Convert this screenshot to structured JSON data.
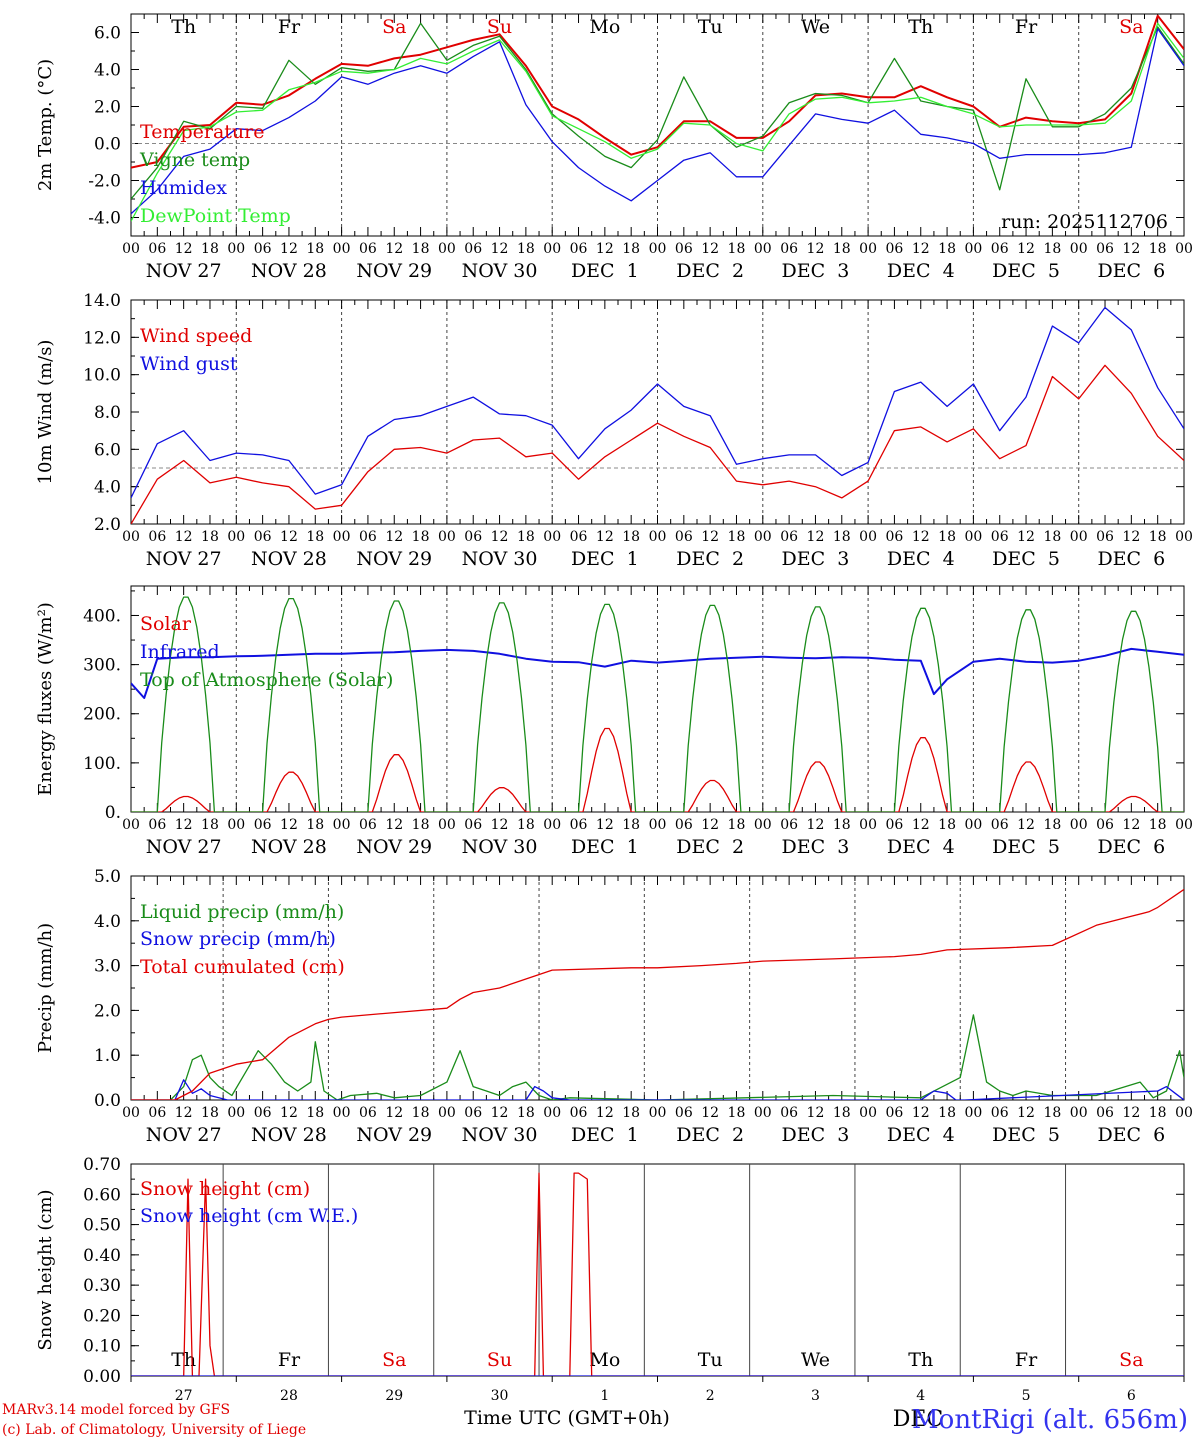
{
  "colors": {
    "red": "#e00000",
    "green": "#1a8c1a",
    "blue": "#1010e0",
    "lightgreen": "#33ee33",
    "grey": "#888888"
  },
  "hours_axis": [
    "00",
    "06",
    "12",
    "18"
  ],
  "dates": [
    "NOV 27",
    "NOV 28",
    "NOV 29",
    "NOV 30",
    "DEC  1",
    "DEC  2",
    "DEC  3",
    "DEC  4",
    "DEC  5",
    "DEC  6"
  ],
  "weekdays": [
    {
      "label": "Th",
      "weekend": false
    },
    {
      "label": "Fr",
      "weekend": false
    },
    {
      "label": "Sa",
      "weekend": true
    },
    {
      "label": "Su",
      "weekend": true
    },
    {
      "label": "Mo",
      "weekend": false
    },
    {
      "label": "Tu",
      "weekend": false
    },
    {
      "label": "We",
      "weekend": false
    },
    {
      "label": "Th",
      "weekend": false
    },
    {
      "label": "Fr",
      "weekend": false
    },
    {
      "label": "Sa",
      "weekend": true
    }
  ],
  "day_numbers": [
    "27",
    "28",
    "29",
    "30",
    "1",
    "2",
    "3",
    "4",
    "5",
    "6"
  ],
  "run_label": "run: 2025112706",
  "footer": {
    "model": "MARv3.14 model forced by GFS",
    "copyright": "(c) Lab. of Climatology, University of Liege",
    "xlabel": "Time UTC (GMT+0h)",
    "station": "MontRigi (alt. 656m)",
    "month": "DEC"
  },
  "chart_data": [
    {
      "type": "line",
      "id": "temp",
      "ylabel": "2m Temp. (°C)",
      "ylim": [
        -5,
        7
      ],
      "yticks": [
        6,
        4,
        2,
        0,
        -2,
        -4
      ],
      "tick_labels": [
        "6.0",
        "4.0",
        "2.0",
        "0.0",
        "-2.0",
        "-4.0"
      ],
      "ref_line": 0,
      "x_unit": "hours since NOV 27 00 UTC",
      "x_range": [
        0,
        240
      ],
      "series": [
        {
          "name": "Temperature",
          "color": "red",
          "x": [
            0,
            6,
            12,
            18,
            24,
            30,
            36,
            42,
            48,
            54,
            60,
            66,
            72,
            78,
            84,
            90,
            96,
            102,
            108,
            114,
            120,
            126,
            132,
            138,
            144,
            150,
            156,
            162,
            168,
            174,
            180,
            186,
            192,
            198,
            204,
            210,
            216,
            222,
            228,
            234,
            240
          ],
          "y": [
            -1.3,
            -1.0,
            0.9,
            1.0,
            2.2,
            2.1,
            2.6,
            3.5,
            4.3,
            4.2,
            4.6,
            4.8,
            5.2,
            5.6,
            5.9,
            4.2,
            2.0,
            1.3,
            0.3,
            -0.6,
            -0.2,
            1.2,
            1.2,
            0.3,
            0.3,
            1.2,
            2.6,
            2.7,
            2.5,
            2.5,
            3.1,
            2.5,
            2.0,
            0.9,
            1.4,
            1.2,
            1.1,
            1.3,
            2.7,
            6.9,
            5.1
          ]
        },
        {
          "name": "Vigne temp",
          "color": "green",
          "x": [
            0,
            6,
            12,
            18,
            24,
            30,
            36,
            42,
            48,
            54,
            60,
            66,
            72,
            78,
            84,
            90,
            96,
            102,
            108,
            114,
            120,
            126,
            132,
            138,
            144,
            150,
            156,
            162,
            168,
            174,
            180,
            186,
            192,
            198,
            204,
            210,
            216,
            222,
            228,
            234,
            240
          ],
          "y": [
            -3.0,
            -1.3,
            1.2,
            0.8,
            2.0,
            1.9,
            4.5,
            3.2,
            4.1,
            3.9,
            4.0,
            6.5,
            4.5,
            5.3,
            5.8,
            4.0,
            1.6,
            0.4,
            -0.7,
            -1.3,
            0.2,
            3.6,
            1.0,
            -0.2,
            0.4,
            2.2,
            2.7,
            2.6,
            2.2,
            4.6,
            2.3,
            2.0,
            1.8,
            -2.5,
            3.5,
            0.9,
            0.9,
            1.6,
            3.0,
            6.3,
            4.3
          ]
        },
        {
          "name": "Humidex",
          "color": "blue",
          "x": [
            0,
            6,
            12,
            18,
            24,
            30,
            36,
            42,
            48,
            54,
            60,
            66,
            72,
            78,
            84,
            90,
            96,
            102,
            108,
            114,
            120,
            126,
            132,
            138,
            144,
            150,
            156,
            162,
            168,
            174,
            180,
            186,
            192,
            198,
            204,
            210,
            216,
            222,
            228,
            234,
            240
          ],
          "y": [
            -3.8,
            -2.5,
            -0.7,
            -0.3,
            0.8,
            0.7,
            1.4,
            2.3,
            3.6,
            3.2,
            3.8,
            4.2,
            3.8,
            4.7,
            5.5,
            2.1,
            0.1,
            -1.3,
            -2.3,
            -3.1,
            -2.0,
            -0.9,
            -0.5,
            -1.8,
            -1.8,
            -0.1,
            1.6,
            1.3,
            1.1,
            1.8,
            0.5,
            0.3,
            0.0,
            -0.8,
            -0.6,
            -0.6,
            -0.6,
            -0.5,
            -0.2,
            6.2,
            4.2
          ]
        },
        {
          "name": "DewPoint Temp",
          "color": "lightgreen",
          "x": [
            0,
            6,
            12,
            18,
            24,
            30,
            36,
            42,
            48,
            54,
            60,
            66,
            72,
            78,
            84,
            90,
            96,
            102,
            108,
            114,
            120,
            126,
            132,
            138,
            144,
            150,
            156,
            162,
            168,
            174,
            180,
            186,
            192,
            198,
            204,
            210,
            216,
            222,
            228,
            234,
            240
          ],
          "y": [
            -4.2,
            -1.6,
            0.7,
            0.9,
            1.7,
            1.8,
            2.9,
            3.3,
            3.9,
            3.8,
            4.0,
            4.6,
            4.3,
            5.0,
            5.6,
            3.9,
            1.5,
            0.8,
            0.1,
            -0.8,
            -0.3,
            1.1,
            1.0,
            0.0,
            -0.4,
            1.6,
            2.4,
            2.5,
            2.2,
            2.3,
            2.5,
            2.0,
            1.6,
            0.9,
            1.0,
            1.0,
            1.0,
            1.1,
            2.3,
            6.5,
            4.6
          ]
        }
      ]
    },
    {
      "type": "line",
      "id": "wind",
      "ylabel": "10m Wind (m/s)",
      "ylim": [
        2,
        14
      ],
      "yticks": [
        14,
        12,
        10,
        8,
        6,
        4,
        2
      ],
      "tick_labels": [
        "14.0",
        "12.0",
        "10.0",
        "8.0",
        "6.0",
        "4.0",
        "2.0"
      ],
      "ref_line": 5,
      "x_unit": "hours since NOV 27 00 UTC",
      "x_range": [
        0,
        240
      ],
      "series": [
        {
          "name": "Wind speed",
          "color": "red",
          "x": [
            0,
            6,
            12,
            18,
            24,
            30,
            36,
            42,
            48,
            54,
            60,
            66,
            72,
            78,
            84,
            90,
            96,
            102,
            108,
            114,
            120,
            126,
            132,
            138,
            144,
            150,
            156,
            162,
            168,
            174,
            180,
            186,
            192,
            198,
            204,
            210,
            216,
            222,
            228,
            234,
            240
          ],
          "y": [
            2.0,
            4.4,
            5.4,
            4.2,
            4.5,
            4.2,
            4.0,
            2.8,
            3.0,
            4.8,
            6.0,
            6.1,
            5.8,
            6.5,
            6.6,
            5.6,
            5.8,
            4.4,
            5.6,
            6.5,
            7.4,
            6.7,
            6.1,
            4.3,
            4.1,
            4.3,
            4.0,
            3.4,
            4.3,
            7.0,
            7.2,
            6.4,
            7.1,
            5.5,
            6.2,
            9.9,
            8.7,
            10.5,
            9.0,
            6.7,
            5.4
          ]
        },
        {
          "name": "Wind gust",
          "color": "blue",
          "x": [
            0,
            6,
            12,
            18,
            24,
            30,
            36,
            42,
            48,
            54,
            60,
            66,
            72,
            78,
            84,
            90,
            96,
            102,
            108,
            114,
            120,
            126,
            132,
            138,
            144,
            150,
            156,
            162,
            168,
            174,
            180,
            186,
            192,
            198,
            204,
            210,
            216,
            222,
            228,
            234,
            240
          ],
          "y": [
            3.4,
            6.3,
            7.0,
            5.4,
            5.8,
            5.7,
            5.4,
            3.6,
            4.1,
            6.7,
            7.6,
            7.8,
            8.3,
            8.8,
            7.9,
            7.8,
            7.3,
            5.5,
            7.1,
            8.1,
            9.5,
            8.3,
            7.8,
            5.2,
            5.5,
            5.7,
            5.7,
            4.6,
            5.3,
            9.1,
            9.6,
            8.3,
            9.5,
            7.0,
            8.8,
            12.6,
            11.7,
            13.6,
            12.4,
            9.3,
            7.1
          ]
        }
      ]
    },
    {
      "type": "line",
      "id": "energy",
      "ylabel": "Energy fluxes (W/m²)",
      "ylim": [
        0,
        460
      ],
      "yticks": [
        400,
        300,
        200,
        100,
        0
      ],
      "tick_labels": [
        "400.",
        "300.",
        "200.",
        "100.",
        "0."
      ],
      "x_unit": "hours since NOV 27 00 UTC",
      "x_range": [
        0,
        240
      ],
      "daily_solar_peaks": [
        32,
        82,
        118,
        50,
        172,
        65,
        103,
        153,
        103,
        32
      ],
      "daily_toa_peaks": [
        440,
        437,
        432,
        428,
        425,
        423,
        420,
        417,
        414,
        411
      ],
      "series": [
        {
          "name": "Solar",
          "color": "red"
        },
        {
          "name": "Infrared",
          "color": "blue",
          "x": [
            0,
            3,
            6,
            12,
            18,
            24,
            30,
            36,
            42,
            48,
            54,
            60,
            66,
            72,
            78,
            84,
            90,
            96,
            102,
            108,
            114,
            120,
            126,
            132,
            138,
            144,
            150,
            156,
            162,
            168,
            174,
            180,
            183,
            186,
            192,
            198,
            204,
            210,
            216,
            222,
            228,
            234,
            240
          ],
          "y": [
            262,
            232,
            312,
            315,
            315,
            317,
            318,
            320,
            322,
            322,
            324,
            325,
            328,
            330,
            328,
            322,
            312,
            306,
            305,
            296,
            308,
            304,
            308,
            312,
            314,
            316,
            314,
            313,
            315,
            314,
            310,
            308,
            240,
            270,
            306,
            312,
            306,
            304,
            308,
            318,
            332,
            326,
            320
          ]
        },
        {
          "name": "Top of Atmosphere (Solar)",
          "color": "green"
        }
      ]
    },
    {
      "type": "line",
      "id": "precip",
      "ylabel": "Precip (mm/h)",
      "ylim": [
        0,
        5
      ],
      "yticks": [
        5,
        4,
        3,
        2,
        1,
        0
      ],
      "tick_labels": [
        "5.0",
        "4.0",
        "3.0",
        "2.0",
        "1.0",
        "0.0"
      ],
      "x_unit": "hours since NOV 27 00 UTC",
      "x_range": [
        0,
        240
      ],
      "series": [
        {
          "name": "Liquid precip (mm/h)",
          "color": "green",
          "x": [
            0,
            9,
            12,
            14,
            16,
            18,
            20,
            23,
            26,
            29,
            32,
            35,
            38,
            41,
            42,
            44,
            47,
            50,
            56,
            60,
            66,
            72,
            75,
            78,
            81,
            84,
            87,
            90,
            93,
            96,
            100,
            120,
            140,
            160,
            180,
            189,
            192,
            195,
            198,
            201,
            204,
            210,
            220,
            230,
            233,
            236,
            239,
            240
          ],
          "y": [
            0,
            0,
            0.3,
            0.9,
            1.0,
            0.5,
            0.3,
            0.1,
            0.6,
            1.1,
            0.8,
            0.4,
            0.2,
            0.4,
            1.3,
            0.2,
            0,
            0.1,
            0.15,
            0.05,
            0.1,
            0.4,
            1.1,
            0.3,
            0.2,
            0.1,
            0.3,
            0.4,
            0.1,
            0,
            0.05,
            0,
            0.05,
            0.1,
            0.05,
            0.5,
            1.9,
            0.4,
            0.2,
            0.1,
            0.2,
            0.1,
            0.1,
            0.4,
            0.05,
            0.2,
            1.1,
            0.5
          ]
        },
        {
          "name": "Snow precip (mm/h)",
          "color": "blue",
          "x": [
            0,
            10,
            12,
            14,
            16,
            18,
            20,
            22,
            24,
            90,
            92,
            94,
            96,
            100,
            180,
            183,
            186,
            188,
            190,
            234,
            236,
            238,
            240
          ],
          "y": [
            0,
            0,
            0.45,
            0.15,
            0.25,
            0.1,
            0.05,
            0,
            0,
            0,
            0.3,
            0.2,
            0.05,
            0,
            0,
            0.2,
            0.15,
            0,
            0,
            0.2,
            0.3,
            0.15,
            0
          ]
        },
        {
          "name": "Total cumulated (cm)",
          "color": "red",
          "x": [
            0,
            10,
            14,
            18,
            24,
            30,
            36,
            42,
            45,
            48,
            60,
            72,
            75,
            78,
            84,
            90,
            96,
            114,
            120,
            130,
            138,
            144,
            160,
            174,
            180,
            186,
            200,
            210,
            220,
            228,
            232,
            234,
            240
          ],
          "y": [
            0,
            0,
            0.2,
            0.6,
            0.8,
            0.9,
            1.4,
            1.7,
            1.8,
            1.85,
            1.95,
            2.05,
            2.25,
            2.4,
            2.5,
            2.7,
            2.9,
            2.95,
            2.95,
            3.0,
            3.05,
            3.1,
            3.15,
            3.2,
            3.25,
            3.35,
            3.4,
            3.45,
            3.9,
            4.1,
            4.2,
            4.3,
            4.7
          ]
        }
      ]
    },
    {
      "type": "line",
      "id": "snow",
      "ylabel": "Snow height (cm)",
      "ylim": [
        0,
        0.7
      ],
      "yticks": [
        0.7,
        0.6,
        0.5,
        0.4,
        0.3,
        0.2,
        0.1,
        0
      ],
      "tick_labels": [
        "0.70",
        "0.60",
        "0.50",
        "0.40",
        "0.30",
        "0.20",
        "0.10",
        "0.00"
      ],
      "x_unit": "hours since NOV 27 00 UTC",
      "x_range": [
        0,
        240
      ],
      "series": [
        {
          "name": "Snow height (cm)",
          "color": "red",
          "x": [
            0,
            12,
            13,
            14,
            15.5,
            17,
            18,
            19,
            91,
            92,
            93,
            94,
            100,
            101,
            102,
            104,
            105,
            240
          ],
          "y": [
            0,
            0,
            0.65,
            0,
            0,
            0.65,
            0.1,
            0,
            0,
            0,
            0.67,
            0,
            0,
            0.67,
            0.67,
            0.65,
            0,
            0
          ]
        },
        {
          "name": "Snow height (cm W.E.)",
          "color": "blue",
          "x": [
            0,
            240
          ],
          "y": [
            0,
            0
          ]
        }
      ]
    }
  ]
}
